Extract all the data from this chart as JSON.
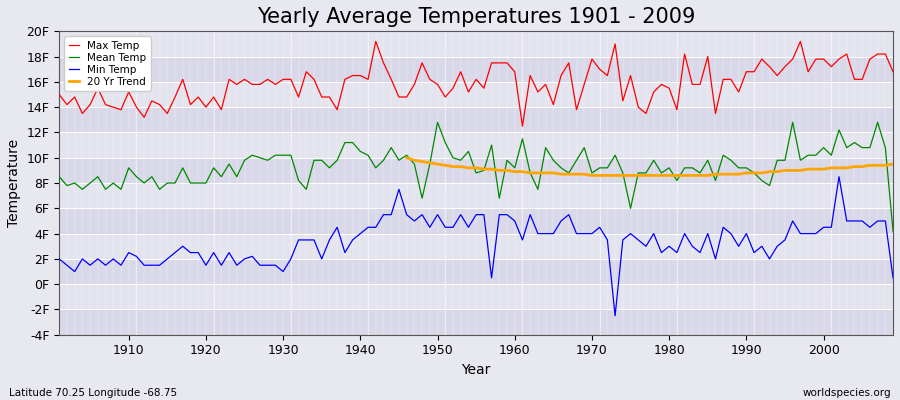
{
  "title": "Yearly Average Temperatures 1901 - 2009",
  "xlabel": "Year",
  "ylabel": "Temperature",
  "lat_lon_label": "Latitude 70.25 Longitude -68.75",
  "source_label": "worldspecies.org",
  "years": [
    1901,
    1902,
    1903,
    1904,
    1905,
    1906,
    1907,
    1908,
    1909,
    1910,
    1911,
    1912,
    1913,
    1914,
    1915,
    1916,
    1917,
    1918,
    1919,
    1920,
    1921,
    1922,
    1923,
    1924,
    1925,
    1926,
    1927,
    1928,
    1929,
    1930,
    1931,
    1932,
    1933,
    1934,
    1935,
    1936,
    1937,
    1938,
    1939,
    1940,
    1941,
    1942,
    1943,
    1944,
    1945,
    1946,
    1947,
    1948,
    1949,
    1950,
    1951,
    1952,
    1953,
    1954,
    1955,
    1956,
    1957,
    1958,
    1959,
    1960,
    1961,
    1962,
    1963,
    1964,
    1965,
    1966,
    1967,
    1968,
    1969,
    1970,
    1971,
    1972,
    1973,
    1974,
    1975,
    1976,
    1977,
    1978,
    1979,
    1980,
    1981,
    1982,
    1983,
    1984,
    1985,
    1986,
    1987,
    1988,
    1989,
    1990,
    1991,
    1992,
    1993,
    1994,
    1995,
    1996,
    1997,
    1998,
    1999,
    2000,
    2001,
    2002,
    2003,
    2004,
    2005,
    2006,
    2007,
    2008,
    2009
  ],
  "max_temp": [
    15.0,
    14.2,
    14.8,
    13.5,
    14.2,
    15.5,
    14.2,
    14.0,
    13.8,
    15.2,
    14.0,
    13.2,
    14.5,
    14.2,
    13.5,
    14.8,
    16.2,
    14.2,
    14.8,
    14.0,
    14.8,
    13.8,
    16.2,
    15.8,
    16.2,
    15.8,
    15.8,
    16.2,
    15.8,
    16.2,
    16.2,
    14.8,
    16.8,
    16.2,
    14.8,
    14.8,
    13.8,
    16.2,
    16.5,
    16.5,
    16.2,
    19.2,
    17.5,
    16.2,
    14.8,
    14.8,
    15.8,
    17.5,
    16.2,
    15.8,
    14.8,
    15.5,
    16.8,
    15.2,
    16.2,
    15.5,
    17.5,
    17.5,
    17.5,
    16.8,
    12.5,
    16.5,
    15.2,
    15.8,
    14.2,
    16.5,
    17.5,
    13.8,
    15.8,
    17.8,
    17.0,
    16.5,
    19.0,
    14.5,
    16.5,
    14.0,
    13.5,
    15.2,
    15.8,
    15.5,
    13.8,
    18.2,
    15.8,
    15.8,
    18.0,
    13.5,
    16.2,
    16.2,
    15.2,
    16.8,
    16.8,
    17.8,
    17.2,
    16.5,
    17.2,
    17.8,
    19.2,
    16.8,
    17.8,
    17.8,
    17.2,
    17.8,
    18.2,
    16.2,
    16.2,
    17.8,
    18.2,
    18.2,
    16.8
  ],
  "mean_temp": [
    8.5,
    7.8,
    8.0,
    7.5,
    8.0,
    8.5,
    7.5,
    8.0,
    7.5,
    9.2,
    8.5,
    8.0,
    8.5,
    7.5,
    8.0,
    8.0,
    9.2,
    8.0,
    8.0,
    8.0,
    9.2,
    8.5,
    9.5,
    8.5,
    9.8,
    10.2,
    10.0,
    9.8,
    10.2,
    10.2,
    10.2,
    8.2,
    7.5,
    9.8,
    9.8,
    9.2,
    9.8,
    11.2,
    11.2,
    10.5,
    10.2,
    9.2,
    9.8,
    10.8,
    9.8,
    10.2,
    9.5,
    6.8,
    9.5,
    12.8,
    11.2,
    10.0,
    9.8,
    10.5,
    8.8,
    9.0,
    11.0,
    6.8,
    9.8,
    9.2,
    11.5,
    8.8,
    7.5,
    10.8,
    9.8,
    9.2,
    8.8,
    9.8,
    10.8,
    8.8,
    9.2,
    9.2,
    10.2,
    8.8,
    6.0,
    8.8,
    8.8,
    9.8,
    8.8,
    9.2,
    8.2,
    9.2,
    9.2,
    8.8,
    9.8,
    8.2,
    10.2,
    9.8,
    9.2,
    9.2,
    8.8,
    8.2,
    7.8,
    9.8,
    9.8,
    12.8,
    9.8,
    10.2,
    10.2,
    10.8,
    10.2,
    12.2,
    10.8,
    11.2,
    10.8,
    10.8,
    12.8,
    10.8,
    4.2
  ],
  "min_temp": [
    2.0,
    1.5,
    1.0,
    2.0,
    1.5,
    2.0,
    1.5,
    2.0,
    1.5,
    2.5,
    2.2,
    1.5,
    1.5,
    1.5,
    2.0,
    2.5,
    3.0,
    2.5,
    2.5,
    1.5,
    2.5,
    1.5,
    2.5,
    1.5,
    2.0,
    2.2,
    1.5,
    1.5,
    1.5,
    1.0,
    2.0,
    3.5,
    3.5,
    3.5,
    2.0,
    3.5,
    4.5,
    2.5,
    3.5,
    4.0,
    4.5,
    4.5,
    5.5,
    5.5,
    7.5,
    5.5,
    5.0,
    5.5,
    4.5,
    5.5,
    4.5,
    4.5,
    5.5,
    4.5,
    5.5,
    5.5,
    0.5,
    5.5,
    5.5,
    5.0,
    3.5,
    5.5,
    4.0,
    4.0,
    4.0,
    5.0,
    5.5,
    4.0,
    4.0,
    4.0,
    4.5,
    3.5,
    -2.5,
    3.5,
    4.0,
    3.5,
    3.0,
    4.0,
    2.5,
    3.0,
    2.5,
    4.0,
    3.0,
    2.5,
    4.0,
    2.0,
    4.5,
    4.0,
    3.0,
    4.0,
    2.5,
    3.0,
    2.0,
    3.0,
    3.5,
    5.0,
    4.0,
    4.0,
    4.0,
    4.5,
    4.5,
    8.5,
    5.0,
    5.0,
    5.0,
    4.5,
    5.0,
    5.0,
    0.5
  ],
  "trend_years": [
    1946,
    1947,
    1948,
    1949,
    1950,
    1951,
    1952,
    1953,
    1954,
    1955,
    1956,
    1957,
    1958,
    1959,
    1960,
    1961,
    1962,
    1963,
    1964,
    1965,
    1966,
    1967,
    1968,
    1969,
    1970,
    1971,
    1972,
    1973,
    1974,
    1975,
    1976,
    1977,
    1978,
    1979,
    1980,
    1981,
    1982,
    1983,
    1984,
    1985,
    1986,
    1987,
    1988,
    1989,
    1990,
    1991,
    1992,
    1993,
    1994,
    1995,
    1996,
    1997,
    1998,
    1999,
    2000,
    2001,
    2002,
    2003,
    2004,
    2005,
    2006,
    2007,
    2008,
    2009
  ],
  "trend_values": [
    10.0,
    9.8,
    9.7,
    9.6,
    9.5,
    9.4,
    9.3,
    9.3,
    9.2,
    9.2,
    9.1,
    9.1,
    9.0,
    9.0,
    8.9,
    8.9,
    8.8,
    8.8,
    8.8,
    8.8,
    8.7,
    8.7,
    8.7,
    8.7,
    8.6,
    8.6,
    8.6,
    8.6,
    8.6,
    8.6,
    8.6,
    8.6,
    8.6,
    8.6,
    8.6,
    8.6,
    8.6,
    8.6,
    8.6,
    8.6,
    8.7,
    8.7,
    8.7,
    8.7,
    8.8,
    8.8,
    8.8,
    8.9,
    8.9,
    9.0,
    9.0,
    9.0,
    9.1,
    9.1,
    9.1,
    9.2,
    9.2,
    9.2,
    9.3,
    9.3,
    9.4,
    9.4,
    9.4,
    9.5
  ],
  "max_color": "#ff0000",
  "mean_color": "#008800",
  "min_color": "#0000ff",
  "trend_color": "#ffa500",
  "bg_color": "#e8e8f0",
  "plot_bg_color": "#dcdce8",
  "grid_color": "#ffffff",
  "band_colors": [
    "#d8d8e8",
    "#e4e4ef"
  ],
  "ylim": [
    -4,
    20
  ],
  "yticks": [
    -4,
    -2,
    0,
    2,
    4,
    6,
    8,
    10,
    12,
    14,
    16,
    18,
    20
  ],
  "title_fontsize": 15,
  "axis_label_fontsize": 10,
  "tick_fontsize": 9
}
